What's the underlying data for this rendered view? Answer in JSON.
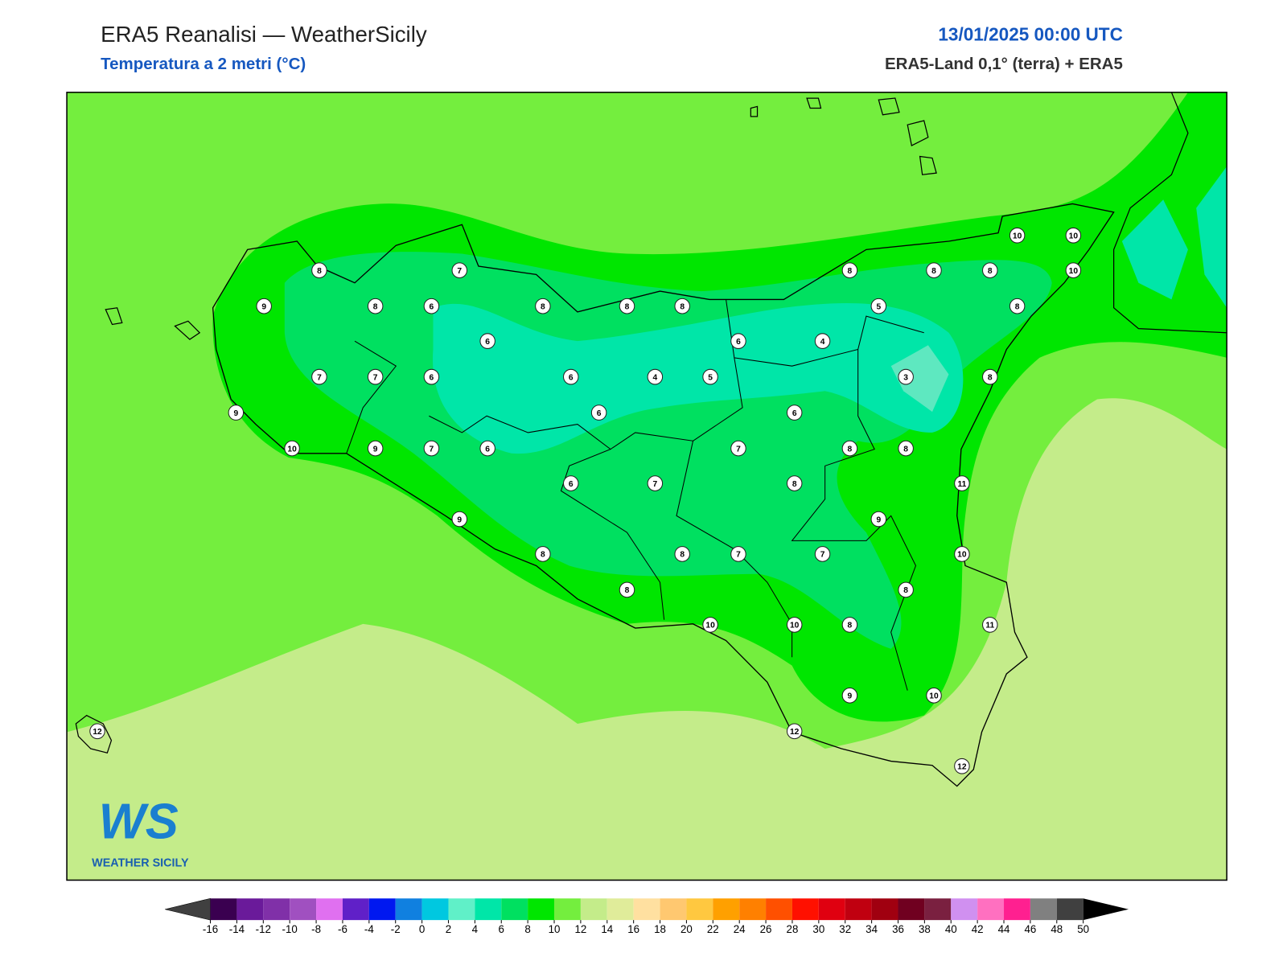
{
  "header": {
    "title": "ERA5 Reanalisi — WeatherSicily",
    "subtitle": "Temperatura a 2 metri (°C)",
    "date": "13/01/2025 00:00 UTC",
    "source": "ERA5-Land 0,1° (terra) + ERA5"
  },
  "logo": {
    "mark": "WS",
    "text": "WEATHER SICILY"
  },
  "stations": [
    8,
    7,
    9,
    8,
    6,
    8,
    8,
    8,
    6,
    7,
    7,
    6,
    6,
    4,
    5,
    9,
    6,
    10,
    9,
    7,
    6,
    6,
    7,
    9,
    8,
    8,
    8,
    7,
    10,
    8,
    8,
    8,
    10,
    10,
    10,
    5,
    8,
    6,
    4,
    3,
    8,
    6,
    7,
    8,
    8,
    8,
    11,
    9,
    7,
    10,
    8,
    10,
    8,
    11,
    9,
    10,
    12,
    12,
    12
  ],
  "colorbar": {
    "ticks": [
      -16,
      -14,
      -12,
      -10,
      -8,
      -6,
      -4,
      -2,
      0,
      2,
      4,
      6,
      8,
      10,
      12,
      14,
      16,
      18,
      20,
      22,
      24,
      26,
      28,
      30,
      32,
      34,
      36,
      38,
      40,
      42,
      44,
      46,
      48,
      50
    ],
    "colors": [
      "#3a0050",
      "#6a1a9a",
      "#8030a8",
      "#a050c0",
      "#e070f0",
      "#6020c8",
      "#0018f0",
      "#1080e0",
      "#00c8e0",
      "#60f0c8",
      "#00e6a8",
      "#00e060",
      "#00e600",
      "#74ee3e",
      "#c4ec8a",
      "#e0ec9a",
      "#ffe0a0",
      "#ffc870",
      "#ffc840",
      "#ffa000",
      "#ff8000",
      "#ff5000",
      "#ff1000",
      "#e00010",
      "#c00010",
      "#a00010",
      "#700020",
      "#7a2040",
      "#d090f0",
      "#ff70c0",
      "#ff2090",
      "#808080",
      "#404040"
    ],
    "under": "#404040",
    "over": "#000000"
  }
}
